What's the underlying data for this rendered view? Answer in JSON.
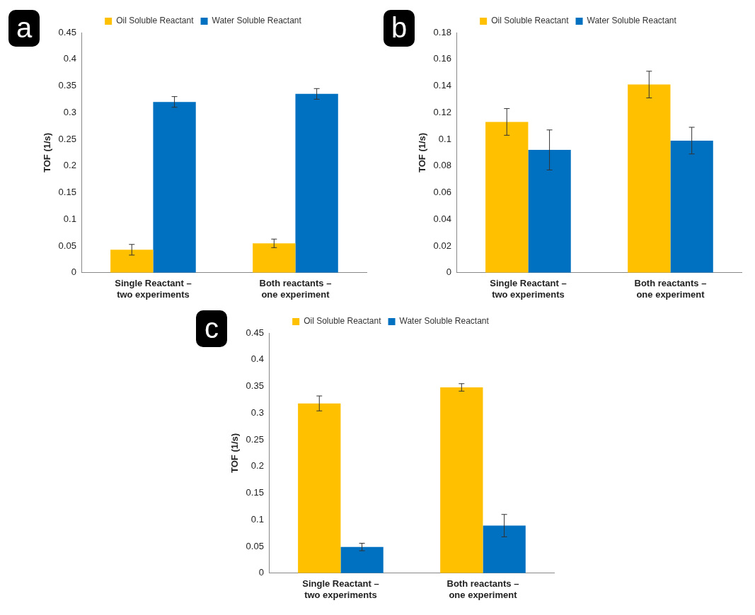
{
  "chart_data": [
    {
      "type": "bar",
      "title": "a",
      "ylabel": "TOF (1/s)",
      "categories": [
        "Single Reactant –\ntwo experiments",
        "Both reactants –\none experiment"
      ],
      "series": [
        {
          "name": "Oil Soluble Reactant",
          "color": "#ffc000",
          "values": [
            0.043,
            0.055
          ],
          "errors": [
            0.01,
            0.008
          ]
        },
        {
          "name": "Water Soluble Reactant",
          "color": "#0070c0",
          "values": [
            0.32,
            0.335
          ],
          "errors": [
            0.01,
            0.01
          ]
        }
      ],
      "ylim": [
        0,
        0.45
      ],
      "yticks": [
        0,
        0.05,
        0.1,
        0.15,
        0.2,
        0.25,
        0.3,
        0.35,
        0.4,
        0.45
      ],
      "legend": "top",
      "grid": false
    },
    {
      "type": "bar",
      "title": "b",
      "ylabel": "TOF (1/s)",
      "categories": [
        "Single Reactant –\ntwo experiments",
        "Both reactants –\none experiment"
      ],
      "series": [
        {
          "name": "Oil Soluble Reactant",
          "color": "#ffc000",
          "values": [
            0.113,
            0.141
          ],
          "errors": [
            0.01,
            0.01
          ]
        },
        {
          "name": "Water Soluble Reactant",
          "color": "#0070c0",
          "values": [
            0.092,
            0.099
          ],
          "errors": [
            0.015,
            0.01
          ]
        }
      ],
      "ylim": [
        0,
        0.18
      ],
      "yticks": [
        0,
        0.02,
        0.04,
        0.06,
        0.08,
        0.1,
        0.12,
        0.14,
        0.16,
        0.18
      ],
      "legend": "top",
      "grid": false
    },
    {
      "type": "bar",
      "title": "c",
      "ylabel": "TOF (1/s)",
      "categories": [
        "Single Reactant –\ntwo experiments",
        "Both reactants –\none experiment"
      ],
      "series": [
        {
          "name": "Oil Soluble Reactant",
          "color": "#ffc000",
          "values": [
            0.318,
            0.348
          ],
          "errors": [
            0.014,
            0.007
          ]
        },
        {
          "name": "Water Soluble Reactant",
          "color": "#0070c0",
          "values": [
            0.049,
            0.089
          ],
          "errors": [
            0.007,
            0.021
          ]
        }
      ],
      "ylim": [
        0,
        0.45
      ],
      "yticks": [
        0,
        0.05,
        0.1,
        0.15,
        0.2,
        0.25,
        0.3,
        0.35,
        0.4,
        0.45
      ],
      "legend": "top",
      "grid": false
    }
  ]
}
